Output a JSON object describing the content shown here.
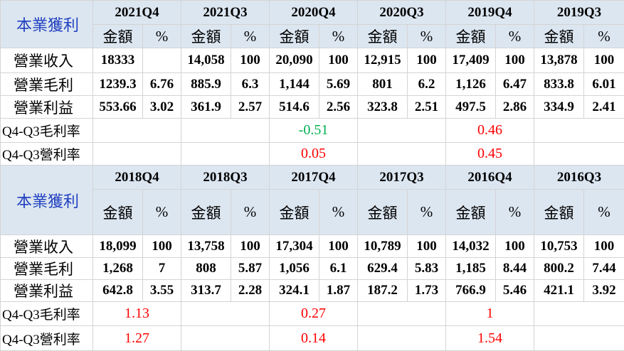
{
  "blocks": [
    {
      "title": "本業獲利",
      "periods": [
        "2021Q4",
        "2021Q3",
        "2020Q4",
        "2020Q3",
        "2019Q4",
        "2019Q3"
      ],
      "subheaders": [
        "金額",
        "%"
      ],
      "rows": [
        {
          "label": "營業收入",
          "cells": [
            "18333",
            null,
            "14,058",
            "100",
            "20,090",
            "100",
            "12,915",
            "100",
            "17,409",
            "100",
            "13,878",
            "100"
          ]
        },
        {
          "label": "營業毛利",
          "cells": [
            "1239.3",
            "6.76",
            "885.9",
            "6.3",
            "1,144",
            "5.69",
            "801",
            "6.2",
            "1,126",
            "6.47",
            "833.8",
            "6.01"
          ]
        },
        {
          "label": "營業利益",
          "cells": [
            "553.66",
            "3.02",
            "361.9",
            "2.57",
            "514.6",
            "2.56",
            "323.8",
            "2.51",
            "497.5",
            "2.86",
            "334.9",
            "2.41"
          ]
        }
      ],
      "ratios": [
        {
          "label": "Q4-Q3毛利率",
          "cells": [
            null,
            null,
            {
              "text": "-0.51",
              "color": "#00b050"
            },
            null,
            {
              "text": "0.46",
              "color": "#ff0000"
            },
            null
          ]
        },
        {
          "label": "Q4-Q3營利率",
          "cells": [
            null,
            null,
            {
              "text": "0.05",
              "color": "#ff0000"
            },
            null,
            {
              "text": "0.45",
              "color": "#ff0000"
            },
            null
          ]
        }
      ]
    },
    {
      "title": "本業獲利",
      "periods": [
        "2018Q4",
        "2018Q3",
        "2017Q4",
        "2017Q3",
        "2016Q4",
        "2016Q3"
      ],
      "subheaders": [
        "金額",
        "%"
      ],
      "rows": [
        {
          "label": "營業收入",
          "cells": [
            "18,099",
            "100",
            "13,758",
            "100",
            "17,304",
            "100",
            "10,789",
            "100",
            "14,032",
            "100",
            "10,753",
            "100"
          ]
        },
        {
          "label": "營業毛利",
          "cells": [
            "1,268",
            "7",
            "808",
            "5.87",
            "1,056",
            "6.1",
            "629.4",
            "5.83",
            "1,185",
            "8.44",
            "800.2",
            "7.44"
          ]
        },
        {
          "label": "營業利益",
          "cells": [
            "642.8",
            "3.55",
            "313.7",
            "2.28",
            "324.1",
            "1.87",
            "187.2",
            "1.73",
            "766.9",
            "5.46",
            "421.1",
            "3.92"
          ]
        }
      ],
      "ratios": [
        {
          "label": "Q4-Q3毛利率",
          "cells": [
            {
              "text": "1.13",
              "color": "#ff0000"
            },
            null,
            {
              "text": "0.27",
              "color": "#ff0000"
            },
            null,
            {
              "text": "1",
              "color": "#ff0000"
            },
            null
          ]
        },
        {
          "label": "Q4-Q3營利率",
          "cells": [
            {
              "text": "1.27",
              "color": "#ff0000"
            },
            null,
            {
              "text": "0.14",
              "color": "#ff0000"
            },
            null,
            {
              "text": "1.54",
              "color": "#ff0000"
            },
            null
          ]
        }
      ]
    }
  ]
}
